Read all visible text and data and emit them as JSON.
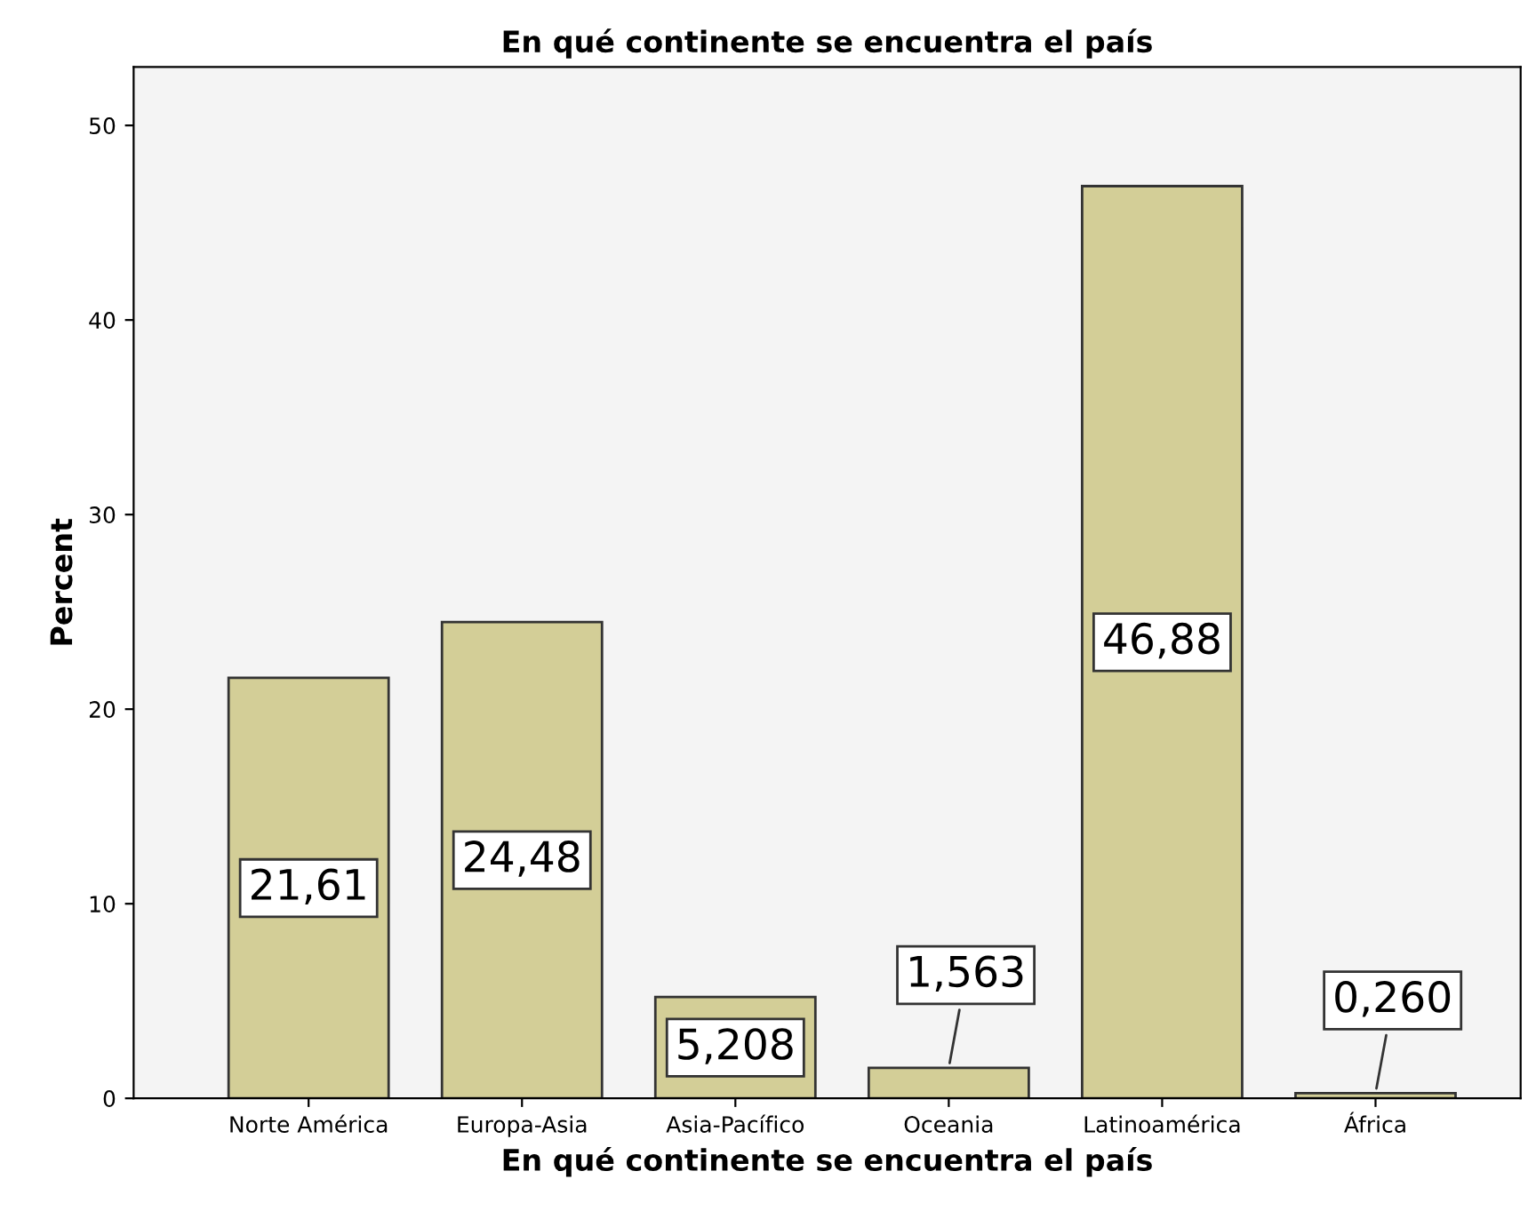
{
  "chart_data": {
    "type": "bar",
    "title": "En qué continente se encuentra el país",
    "xlabel": "En qué continente se encuentra el país",
    "ylabel": "Percent",
    "categories": [
      "Norte América",
      "Europa-Asia",
      "Asia-Pacífico",
      "Oceania",
      "Latinoamérica",
      "África"
    ],
    "values": [
      21.61,
      24.48,
      5.208,
      1.563,
      46.88,
      0.26
    ],
    "value_labels": [
      "21,61",
      "24,48",
      "5,208",
      "1,563",
      "46,88",
      "0,260"
    ],
    "color": "#d3ce97",
    "ylim": [
      0,
      53
    ],
    "yticks": [
      0,
      10,
      20,
      30,
      40,
      50
    ],
    "grid": false
  }
}
